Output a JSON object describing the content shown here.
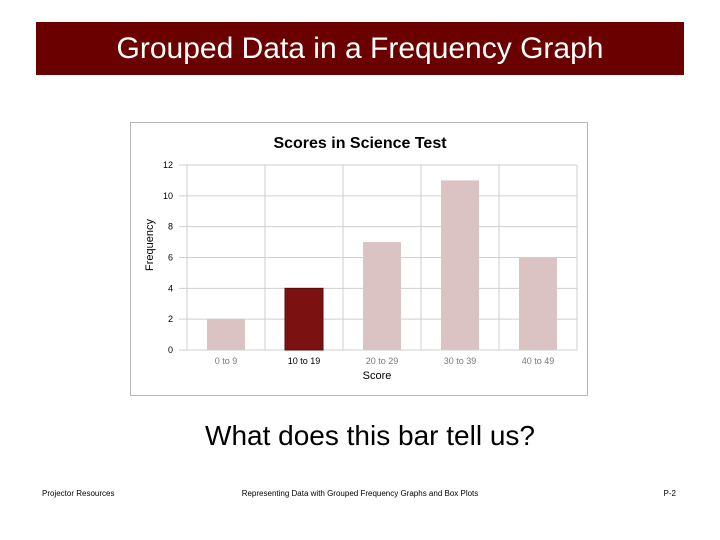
{
  "slide": {
    "title": "Grouped Data in a Frequency Graph",
    "question": "What does this bar tell us?"
  },
  "footer": {
    "left": "Projector Resources",
    "center": "Representing Data with Grouped Frequency Graphs and Box Plots",
    "right": "P-2"
  },
  "colors": {
    "title_background": "#6b0000",
    "bar_default": "#dbc3c3",
    "bar_highlight": "#7b1111"
  },
  "chart_data": {
    "type": "bar",
    "title": "Scores in Science Test",
    "xlabel": "Score",
    "ylabel": "Frequency",
    "categories": [
      "0 to 9",
      "10 to 19",
      "20 to 29",
      "30 to 39",
      "40 to 49"
    ],
    "values": [
      2,
      4,
      7,
      11,
      6
    ],
    "highlighted_category": "10 to 19",
    "ylim": [
      0,
      12
    ],
    "yticks": [
      "0",
      "2",
      "4",
      "6",
      "8",
      "10",
      "12"
    ],
    "grid": true,
    "legend": "none"
  }
}
